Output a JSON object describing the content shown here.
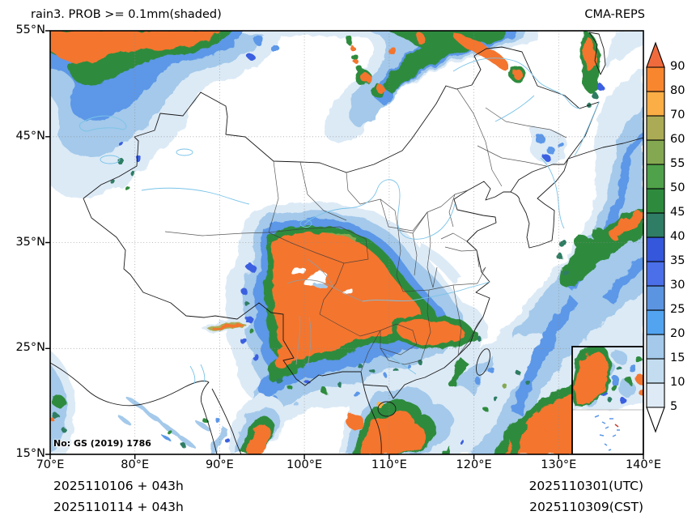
{
  "header": {
    "title_left": "rain3. PROB >= 0.1mm(shaded)",
    "title_right": "CMA-REPS"
  },
  "axes": {
    "x_ticks": [
      "70°E",
      "80°E",
      "90°E",
      "100°E",
      "110°E",
      "120°E",
      "130°E",
      "140°E"
    ],
    "y_ticks": [
      "55°N",
      "45°N",
      "35°N",
      "25°N",
      "15°N"
    ]
  },
  "footer": {
    "left_line1": "2025110106 + 043h",
    "left_line2": "2025110114 + 043h",
    "right_line1": "2025110301(UTC)",
    "right_line2": "2025110309(CST)"
  },
  "map": {
    "license_text": "No: GS (2019) 1786"
  },
  "colorbar": {
    "boundary_labels": [
      "5",
      "10",
      "15",
      "20",
      "25",
      "30",
      "35",
      "40",
      "45",
      "50",
      "55",
      "60",
      "70",
      "80",
      "90"
    ],
    "segment_colors": [
      "#DEEBF6",
      "#C3DCF0",
      "#A4C9EA",
      "#53A4F0",
      "#5B94E0",
      "#4A6FE8",
      "#3557DC",
      "#2E7D64",
      "#2E8B3E",
      "#4FA14A",
      "#84A851",
      "#ABAB55",
      "#FBAE45",
      "#F8862F"
    ],
    "over_color": "#EF6B3D",
    "under_color": "#FFFFFF",
    "accent_blue": "#3A5FE0",
    "accent_orange": "#F4742F",
    "accent_green": "#2E8B3E"
  }
}
